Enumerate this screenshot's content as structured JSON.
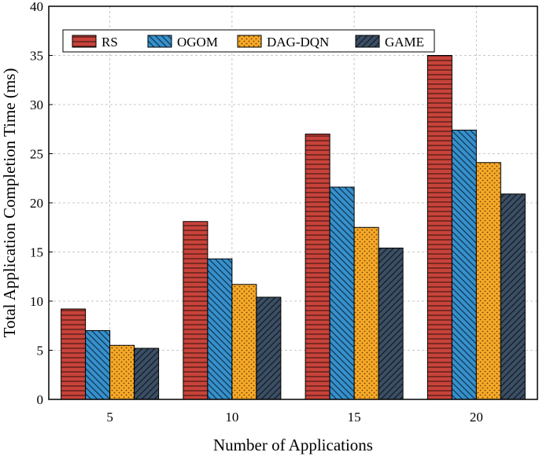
{
  "chart_data": {
    "type": "bar",
    "title": "",
    "xlabel": "Number of Applications",
    "ylabel": "Total Application Completion Time (ms)",
    "categories": [
      "5",
      "10",
      "15",
      "20"
    ],
    "ylim": [
      0,
      40
    ],
    "yticks": [
      "0",
      "5",
      "10",
      "15",
      "20",
      "25",
      "30",
      "35",
      "40"
    ],
    "grid": true,
    "legend_position": "top-left",
    "series": [
      {
        "name": "RS",
        "color": "#c0392b",
        "pattern": "horizontal-lines",
        "values": [
          9.2,
          18.1,
          27.0,
          35.0
        ]
      },
      {
        "name": "OGOM",
        "color": "#2e86c1",
        "pattern": "diagonal-lines",
        "values": [
          7.0,
          14.3,
          21.6,
          27.4
        ]
      },
      {
        "name": "DAG-DQN",
        "color": "#f5a623",
        "pattern": "dots",
        "values": [
          5.5,
          11.7,
          17.5,
          24.1
        ]
      },
      {
        "name": "GAME",
        "color": "#34495e",
        "pattern": "diagonal-lines",
        "values": [
          5.2,
          10.4,
          15.4,
          20.9
        ]
      }
    ]
  }
}
